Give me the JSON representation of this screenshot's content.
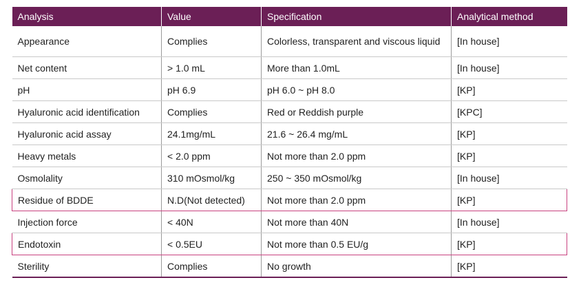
{
  "table": {
    "headers": [
      "Analysis",
      "Value",
      "Specification",
      "Analytical method"
    ],
    "rows": [
      {
        "analysis": "Appearance",
        "value": "Complies",
        "spec": "Colorless, transparent and viscous liquid",
        "method": "[In house]"
      },
      {
        "analysis": "Net content",
        "value": "> 1.0 mL",
        "spec": "More than 1.0mL",
        "method": "[In house]"
      },
      {
        "analysis": "pH",
        "value": "pH 6.9",
        "spec": "pH 6.0 ~ pH 8.0",
        "method": "[KP]"
      },
      {
        "analysis": "Hyaluronic acid identification",
        "value": "Complies",
        "spec": "Red or Reddish purple",
        "method": "[KPC]"
      },
      {
        "analysis": "Hyaluronic acid assay",
        "value": "24.1mg/mL",
        "spec": "21.6 ~ 26.4 mg/mL",
        "method": "[KP]"
      },
      {
        "analysis": "Heavy metals",
        "value": "< 2.0 ppm",
        "spec": "Not more than 2.0 ppm",
        "method": "[KP]"
      },
      {
        "analysis": "Osmolality",
        "value": "310 mOsmol/kg",
        "spec": "250 ~ 350 mOsmol/kg",
        "method": "[In house]"
      },
      {
        "analysis": "Residue of BDDE",
        "value": "N.D(Not detected)",
        "spec": "Not more than 2.0 ppm",
        "method": "[KP]"
      },
      {
        "analysis": "Injection force",
        "value": "< 40N",
        "spec": "Not more than 40N",
        "method": "[In house]"
      },
      {
        "analysis": "Endotoxin",
        "value": "< 0.5EU",
        "spec": "Not more than 0.5 EU/g",
        "method": "[KP]"
      },
      {
        "analysis": "Sterility",
        "value": "Complies",
        "spec": "No growth",
        "method": "[KP]"
      }
    ]
  },
  "colors": {
    "header_bg": "#6b1f56",
    "highlight_border": "#c8417f"
  }
}
